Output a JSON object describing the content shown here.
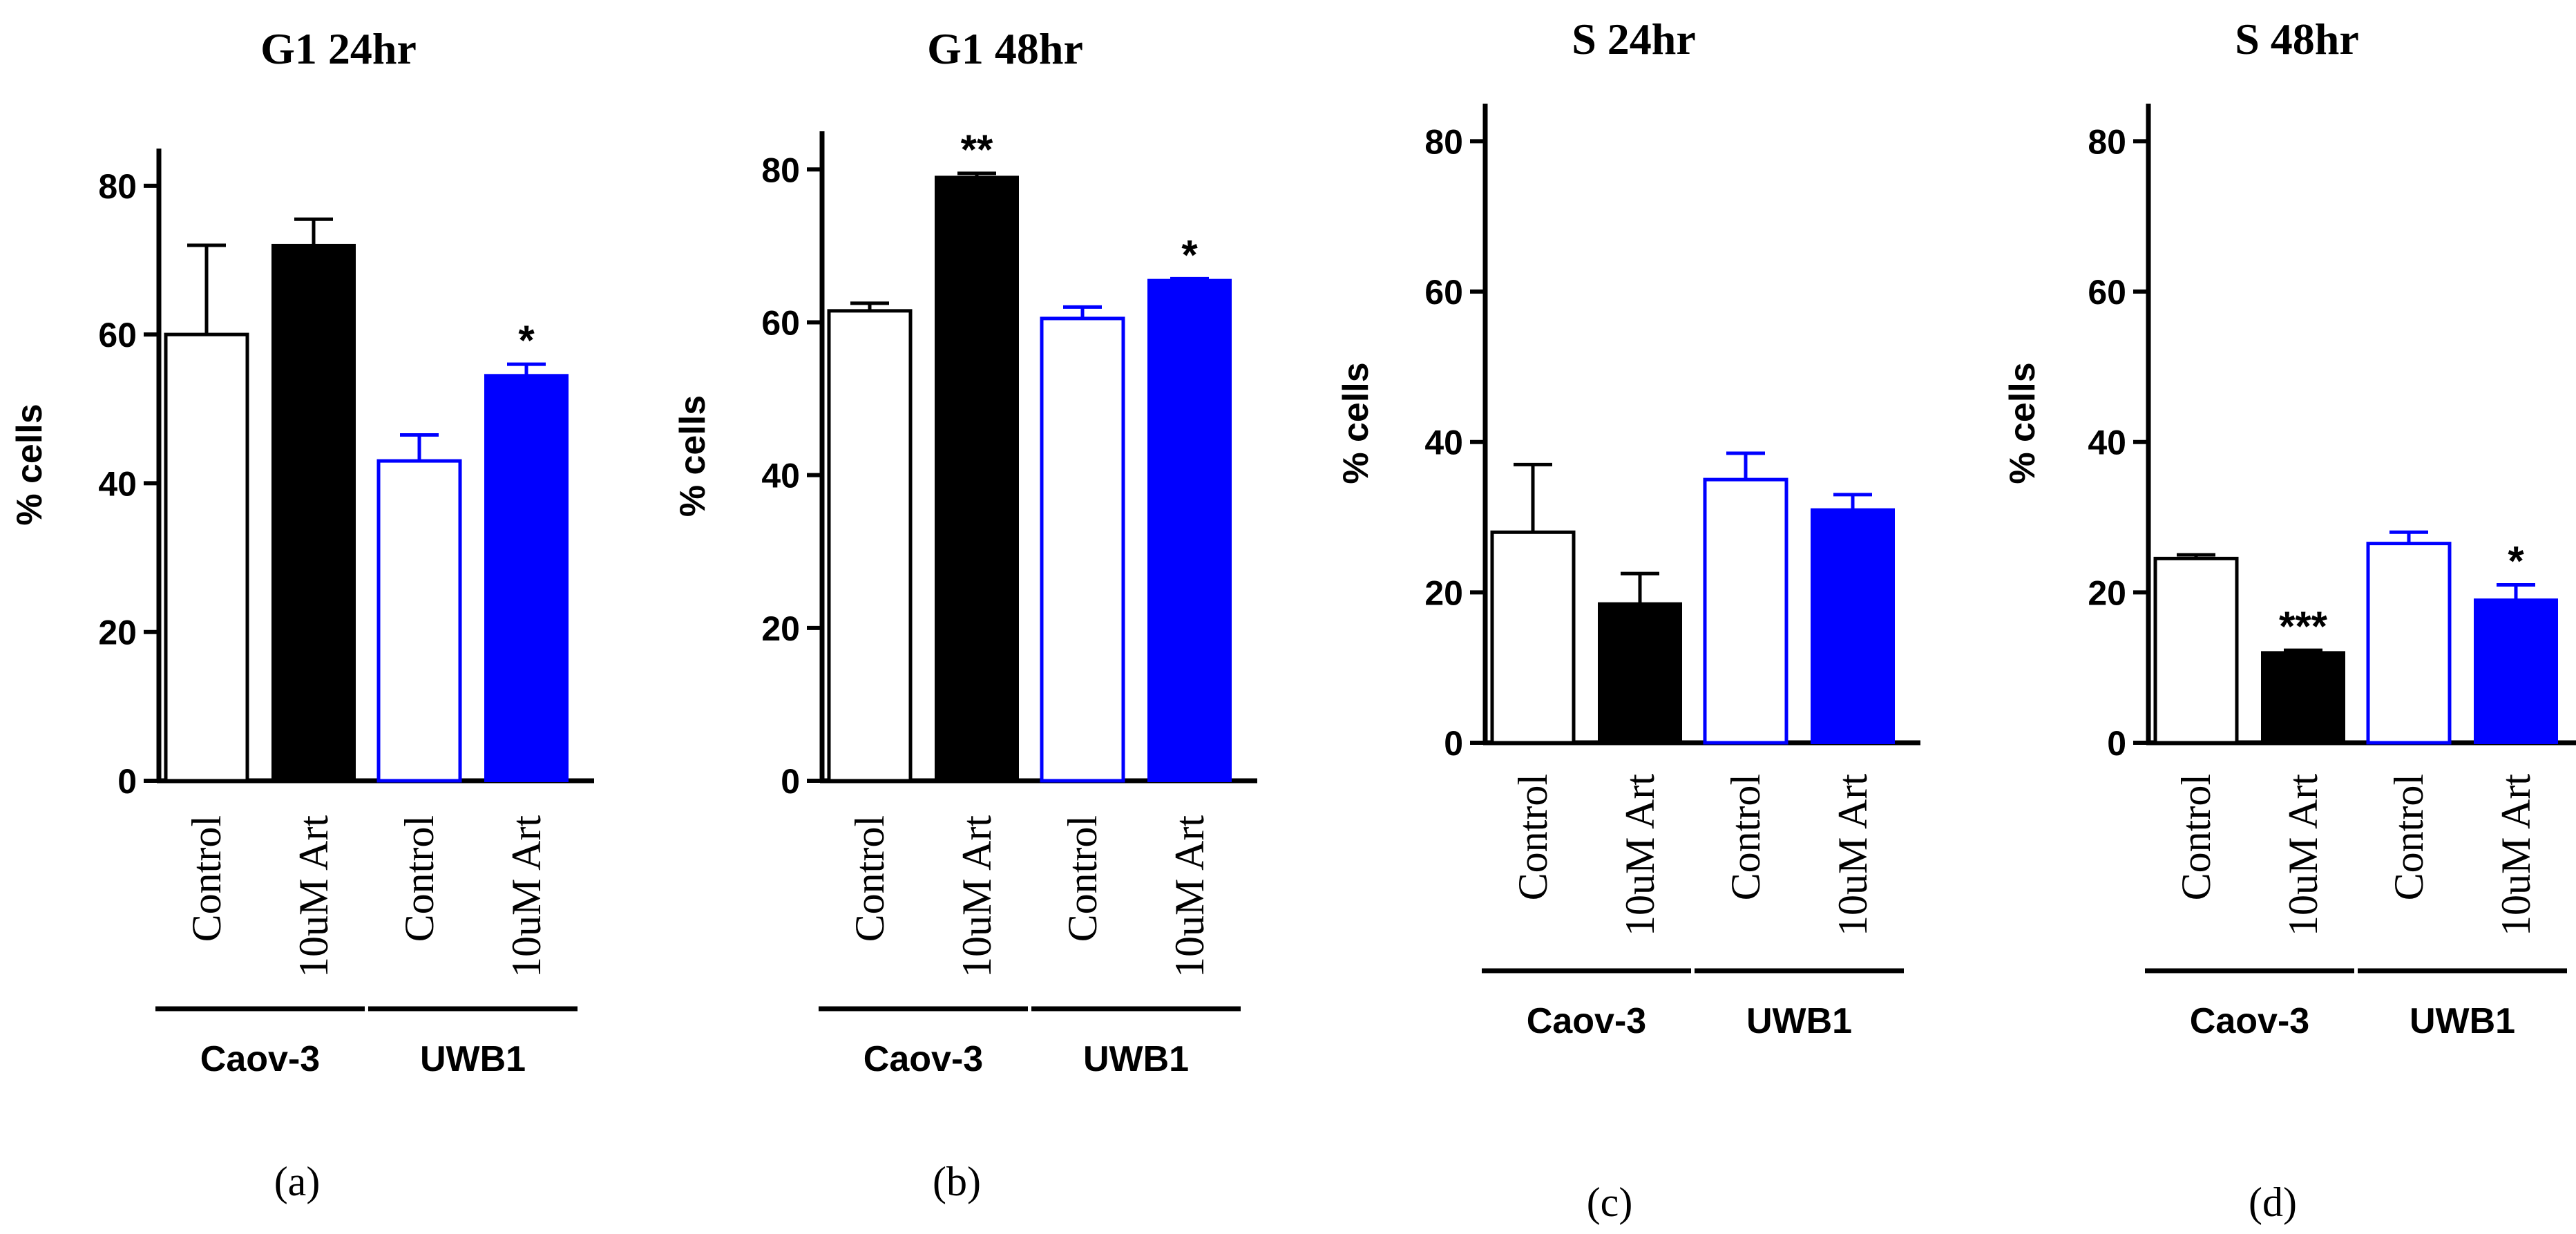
{
  "figure_labels": [
    "(a)",
    "(b)",
    "(c)",
    "(d)"
  ],
  "colors": {
    "axis": "#000000",
    "caov3_bar": "#000000",
    "uwb1_bar": "#0000ff",
    "open_fill": "#ffffff"
  },
  "chart_data": [
    {
      "type": "bar",
      "title": "G1 24hr",
      "ylabel": "% cells",
      "xlabel": "",
      "ylim": [
        0,
        85
      ],
      "yticks": [
        0,
        20,
        40,
        60,
        80
      ],
      "categories": [
        "Control",
        "10uM Art",
        "Control",
        "10uM Art"
      ],
      "groups": [
        {
          "name": "Caov-3",
          "categories": [
            0,
            1
          ]
        },
        {
          "name": "UWB1",
          "categories": [
            2,
            3
          ]
        }
      ],
      "series": [
        {
          "name": "% cells",
          "values": [
            60,
            72,
            43,
            54.5
          ],
          "errors": [
            12,
            3.5,
            3.5,
            1.5
          ],
          "significance": [
            "",
            "",
            "",
            "*"
          ],
          "styles": [
            "open-black",
            "filled-black",
            "open-blue",
            "filled-blue"
          ]
        }
      ]
    },
    {
      "type": "bar",
      "title": "G1 48hr",
      "ylabel": "% cells",
      "xlabel": "",
      "ylim": [
        0,
        85
      ],
      "yticks": [
        0,
        20,
        40,
        60,
        80
      ],
      "categories": [
        "Control",
        "10uM Art",
        "Control",
        "10uM Art"
      ],
      "groups": [
        {
          "name": "Caov-3",
          "categories": [
            0,
            1
          ]
        },
        {
          "name": "UWB1",
          "categories": [
            2,
            3
          ]
        }
      ],
      "series": [
        {
          "name": "% cells",
          "values": [
            61.5,
            79,
            60.5,
            65.5
          ],
          "errors": [
            1,
            0.5,
            1.5,
            0.2
          ],
          "significance": [
            "",
            "**",
            "",
            "*"
          ],
          "styles": [
            "open-black",
            "filled-black",
            "open-blue",
            "filled-blue"
          ]
        }
      ]
    },
    {
      "type": "bar",
      "title": "S 24hr",
      "ylabel": "% cells",
      "xlabel": "",
      "ylim": [
        0,
        85
      ],
      "yticks": [
        0,
        20,
        40,
        60,
        80
      ],
      "categories": [
        "Control",
        "10uM Art",
        "Control",
        "10uM Art"
      ],
      "groups": [
        {
          "name": "Caov-3",
          "categories": [
            0,
            1
          ]
        },
        {
          "name": "UWB1",
          "categories": [
            2,
            3
          ]
        }
      ],
      "series": [
        {
          "name": "% cells",
          "values": [
            28,
            18.5,
            35,
            31
          ],
          "errors": [
            9,
            4,
            3.5,
            2
          ],
          "significance": [
            "",
            "",
            "",
            ""
          ],
          "styles": [
            "open-black",
            "filled-black",
            "open-blue",
            "filled-blue"
          ]
        }
      ]
    },
    {
      "type": "bar",
      "title": "S 48hr",
      "ylabel": "% cells",
      "xlabel": "",
      "ylim": [
        0,
        85
      ],
      "yticks": [
        0,
        20,
        40,
        60,
        80
      ],
      "categories": [
        "Control",
        "10uM Art",
        "Control",
        "10uM Art"
      ],
      "groups": [
        {
          "name": "Caov-3",
          "categories": [
            0,
            1
          ]
        },
        {
          "name": "UWB1",
          "categories": [
            2,
            3
          ]
        }
      ],
      "series": [
        {
          "name": "% cells",
          "values": [
            24.5,
            12,
            26.5,
            19
          ],
          "errors": [
            0.5,
            0.3,
            1.5,
            2
          ],
          "significance": [
            "",
            "***",
            "",
            "*"
          ],
          "styles": [
            "open-black",
            "filled-black",
            "open-blue",
            "filled-blue"
          ]
        }
      ]
    }
  ]
}
